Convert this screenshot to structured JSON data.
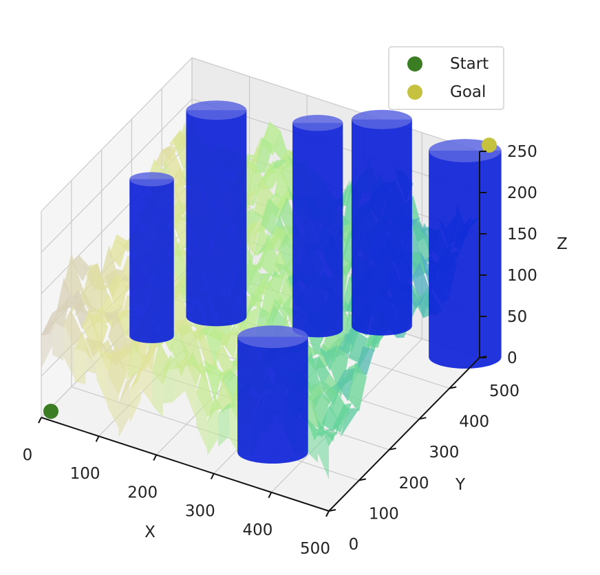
{
  "chart_data": {
    "type": "scatter",
    "projection": "3d",
    "xlabel": "X",
    "ylabel": "Y",
    "zlabel": "Z",
    "xlim": [
      0,
      500
    ],
    "ylim": [
      0,
      500
    ],
    "zlim": [
      0,
      250
    ],
    "xticks": [
      "0",
      "100",
      "200",
      "300",
      "400",
      "500"
    ],
    "yticks": [
      "0",
      "100",
      "200",
      "300",
      "400",
      "500"
    ],
    "zticks": [
      "0",
      "50",
      "100",
      "150",
      "200",
      "250"
    ],
    "grid": true,
    "legend_placement": "top-right",
    "series": [
      {
        "name": "Start",
        "color": "#3a7d22",
        "points": [
          {
            "x": 0,
            "y": 0,
            "z": 0
          }
        ]
      },
      {
        "name": "Goal",
        "color": "#c5c240",
        "points": [
          {
            "x": 500,
            "y": 500,
            "z": 250
          }
        ]
      }
    ],
    "obstacles": {
      "shape": "cylinder",
      "color": "#0a1fd9",
      "items": [
        {
          "x": 40,
          "y": 290,
          "r": 22,
          "z0": 0,
          "z1": 190
        },
        {
          "x": 100,
          "y": 390,
          "r": 30,
          "z0": 0,
          "z1": 250
        },
        {
          "x": 250,
          "y": 440,
          "r": 25,
          "z0": 0,
          "z1": 250
        },
        {
          "x": 330,
          "y": 500,
          "r": 30,
          "z0": 0,
          "z1": 250
        },
        {
          "x": 480,
          "y": 490,
          "r": 36,
          "z0": 0,
          "z1": 250
        },
        {
          "x": 350,
          "y": 100,
          "r": 35,
          "z0": 0,
          "z1": 140
        }
      ]
    },
    "terrain": {
      "type": "surface",
      "colormap": [
        "#b39e90",
        "#d6cbc4",
        "#e2e49a",
        "#b8ec8e",
        "#62d39a",
        "#4aa0d6"
      ],
      "z_range": [
        30,
        220
      ]
    }
  }
}
